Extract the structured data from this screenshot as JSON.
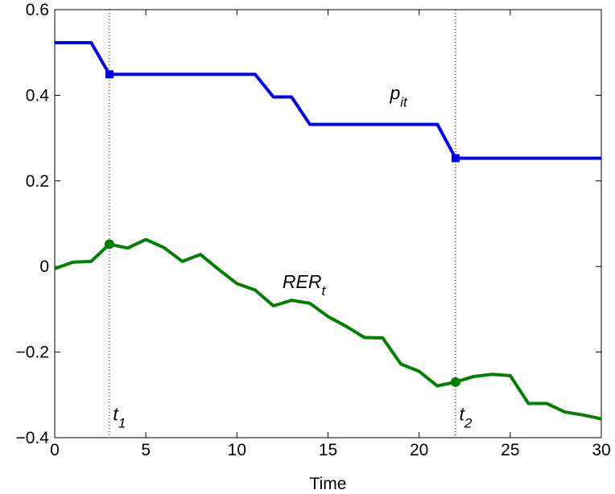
{
  "chart_data": {
    "type": "line",
    "title": "",
    "xlabel": "Time",
    "ylabel": "",
    "xlim": [
      0,
      30
    ],
    "ylim": [
      -0.4,
      0.6
    ],
    "xticks": [
      0,
      5,
      10,
      15,
      20,
      25,
      30
    ],
    "xtick_labels": [
      "0",
      "5",
      "10",
      "15",
      "20",
      "25",
      "30"
    ],
    "yticks": [
      -0.4,
      -0.2,
      0,
      0.2,
      0.4,
      0.6
    ],
    "ytick_labels": [
      "−0.4",
      "−0.2",
      "0",
      "0.2",
      "0.4",
      "0.6"
    ],
    "grid": false,
    "series": [
      {
        "key": "p",
        "color": "#0000ff",
        "x": [
          0,
          2,
          3,
          11,
          12,
          13,
          14,
          21,
          22,
          30
        ],
        "y": [
          0.523,
          0.523,
          0.449,
          0.449,
          0.396,
          0.396,
          0.332,
          0.332,
          0.253,
          0.253
        ],
        "markers": [
          {
            "x": 3,
            "y": 0.449,
            "shape": "square"
          },
          {
            "x": 22,
            "y": 0.253,
            "shape": "square"
          }
        ]
      },
      {
        "key": "rer",
        "color": "#007f00",
        "x": [
          0,
          1,
          2,
          3,
          4,
          5,
          6,
          7,
          8,
          9,
          10,
          11,
          12,
          13,
          14,
          15,
          16,
          17,
          18,
          19,
          20,
          21,
          22,
          23,
          24,
          25,
          26,
          27,
          28,
          29,
          30
        ],
        "y": [
          -0.005,
          0.01,
          0.012,
          0.052,
          0.043,
          0.063,
          0.044,
          0.012,
          0.028,
          -0.007,
          -0.04,
          -0.055,
          -0.092,
          -0.079,
          -0.086,
          -0.117,
          -0.14,
          -0.166,
          -0.167,
          -0.228,
          -0.245,
          -0.279,
          -0.27,
          -0.257,
          -0.252,
          -0.255,
          -0.32,
          -0.32,
          -0.34,
          -0.347,
          -0.356
        ],
        "markers": [
          {
            "x": 3,
            "y": 0.052,
            "shape": "circle"
          },
          {
            "x": 22,
            "y": -0.27,
            "shape": "circle"
          }
        ]
      }
    ],
    "vlines": [
      {
        "x": 3
      },
      {
        "x": 22
      }
    ],
    "annotations": {
      "p_label": {
        "main": "p",
        "sub": "it",
        "x": 18.4,
        "y": 0.39
      },
      "rer_label": {
        "main": "RER",
        "sub": "t",
        "x": 12.5,
        "y": -0.05
      },
      "t1_label": {
        "main": "t",
        "sub": "1",
        "x": 3.2,
        "y": -0.36
      },
      "t2_label": {
        "main": "t",
        "sub": "2",
        "x": 22.2,
        "y": -0.36
      }
    }
  }
}
